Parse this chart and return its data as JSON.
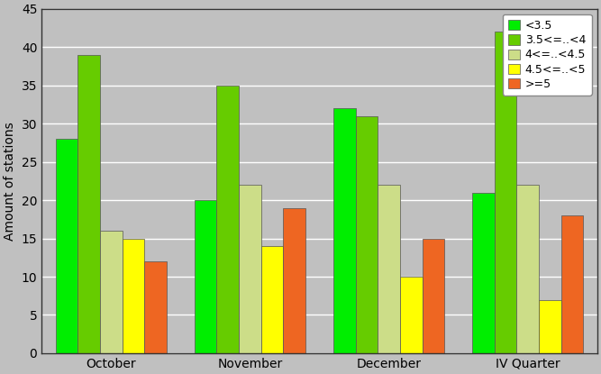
{
  "categories": [
    "October",
    "November",
    "December",
    "IV Quarter"
  ],
  "series": [
    {
      "label": "<3.5",
      "values": [
        28,
        20,
        32,
        21
      ],
      "color": "#00ee00"
    },
    {
      "label": "3.5<=..<4",
      "values": [
        39,
        35,
        31,
        42
      ],
      "color": "#66cc00"
    },
    {
      "label": "4<=..<4.5",
      "values": [
        16,
        22,
        22,
        22
      ],
      "color": "#ccdd88"
    },
    {
      "label": "4.5<=..<5",
      "values": [
        15,
        14,
        10,
        7
      ],
      "color": "#ffff00"
    },
    {
      "label": ">=5",
      "values": [
        12,
        19,
        15,
        18
      ],
      "color": "#ee6622"
    }
  ],
  "ylabel": "Amount of stations",
  "ylim": [
    0,
    45
  ],
  "yticks": [
    0,
    5,
    10,
    15,
    20,
    25,
    30,
    35,
    40,
    45
  ],
  "plot_bg_color": "#c0c0c0",
  "fig_bg_color": "#c0c0c0"
}
